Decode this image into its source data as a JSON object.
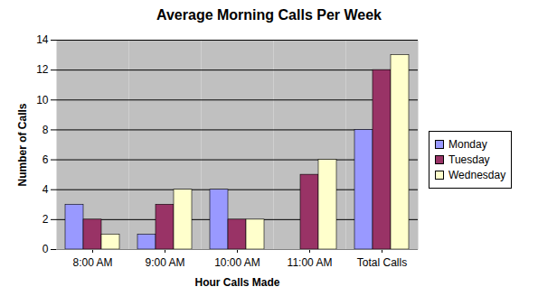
{
  "chart_data": {
    "type": "bar",
    "title": "Average Morning Calls Per Week",
    "x_label": "Hour Calls Made",
    "y_label": "Number of Calls",
    "categories": [
      "8:00 AM",
      "9:00 AM",
      "10:00 AM",
      "11:00 AM",
      "Total Calls"
    ],
    "series": [
      {
        "name": "Monday",
        "color": "#9999ff",
        "values": [
          3,
          1,
          4,
          0,
          8
        ]
      },
      {
        "name": "Tuesday",
        "color": "#993366",
        "values": [
          2,
          3,
          2,
          5,
          12
        ]
      },
      {
        "name": "Wednesday",
        "color": "#ffffcc",
        "values": [
          1,
          4,
          2,
          6,
          13
        ]
      }
    ],
    "ylim": [
      0,
      14
    ],
    "yticks": [
      0,
      2,
      4,
      6,
      8,
      10,
      12,
      14
    ],
    "grid": true,
    "legend": "right"
  }
}
